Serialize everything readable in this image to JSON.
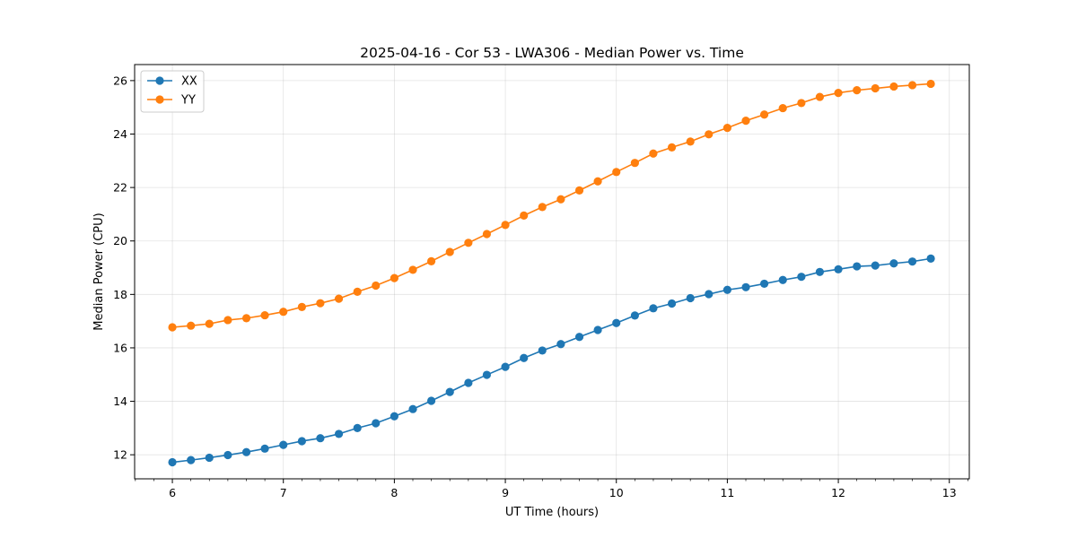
{
  "chart_data": {
    "type": "line",
    "title": "2025-04-16 - Cor 53 - LWA306 - Median Power vs. Time",
    "xlabel": "UT Time (hours)",
    "ylabel": "Median Power (CPU)",
    "xlim": [
      5.66,
      13.18
    ],
    "ylim": [
      11.1,
      26.6
    ],
    "xticks": [
      6,
      7,
      8,
      9,
      10,
      11,
      12,
      13
    ],
    "yticks": [
      12,
      14,
      16,
      18,
      20,
      22,
      24,
      26
    ],
    "grid": true,
    "legend_position": "top-left",
    "x": [
      6.0,
      6.167,
      6.333,
      6.5,
      6.667,
      6.833,
      7.0,
      7.167,
      7.333,
      7.5,
      7.667,
      7.833,
      8.0,
      8.167,
      8.333,
      8.5,
      8.667,
      8.833,
      9.0,
      9.167,
      9.333,
      9.5,
      9.667,
      9.833,
      10.0,
      10.167,
      10.333,
      10.5,
      10.667,
      10.833,
      11.0,
      11.167,
      11.333,
      11.5,
      11.667,
      11.833,
      12.0,
      12.167,
      12.333,
      12.5,
      12.667,
      12.833
    ],
    "series": [
      {
        "name": "XX",
        "color": "#1f77b4",
        "values": [
          11.72,
          11.8,
          11.89,
          11.99,
          12.1,
          12.23,
          12.37,
          12.51,
          12.62,
          12.78,
          13.0,
          13.18,
          13.44,
          13.71,
          14.02,
          14.35,
          14.69,
          14.99,
          15.29,
          15.62,
          15.9,
          16.14,
          16.41,
          16.67,
          16.93,
          17.21,
          17.48,
          17.66,
          17.86,
          18.01,
          18.17,
          18.27,
          18.4,
          18.54,
          18.66,
          18.84,
          18.94,
          19.05,
          19.08,
          19.16,
          19.23,
          19.34
        ]
      },
      {
        "name": "YY",
        "color": "#ff7f0e",
        "values": [
          16.77,
          16.83,
          16.9,
          17.04,
          17.11,
          17.22,
          17.35,
          17.53,
          17.67,
          17.84,
          18.1,
          18.33,
          18.61,
          18.92,
          19.24,
          19.59,
          19.93,
          20.26,
          20.6,
          20.95,
          21.27,
          21.56,
          21.89,
          22.23,
          22.58,
          22.92,
          23.27,
          23.5,
          23.72,
          23.99,
          24.23,
          24.5,
          24.73,
          24.97,
          25.16,
          25.39,
          25.54,
          25.64,
          25.71,
          25.78,
          25.83,
          25.88
        ]
      }
    ]
  }
}
